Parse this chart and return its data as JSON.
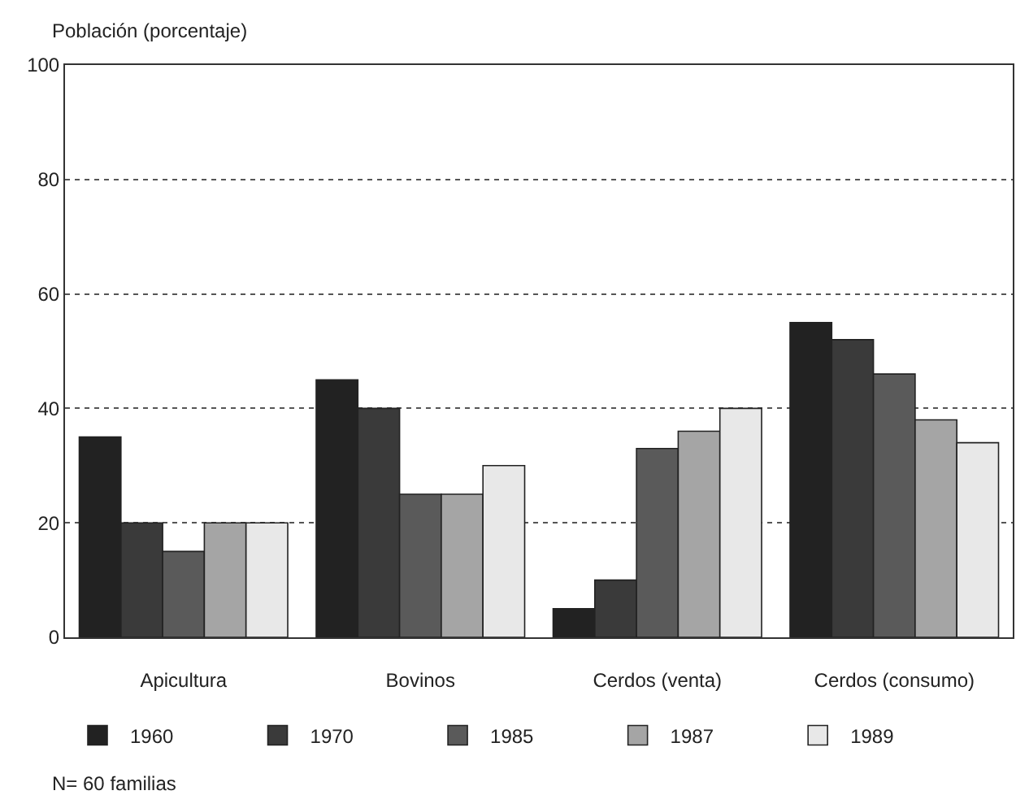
{
  "chart_data": {
    "type": "bar",
    "ylabel": "Población (porcentaje)",
    "categories": [
      "Apicultura",
      "Bovinos",
      "Cerdos (venta)",
      "Cerdos (consumo)"
    ],
    "series": [
      {
        "name": "1960",
        "color": "#222222",
        "values": [
          35,
          45,
          5,
          55
        ]
      },
      {
        "name": "1970",
        "color": "#3a3a3a",
        "values": [
          20,
          40,
          10,
          52
        ]
      },
      {
        "name": "1985",
        "color": "#5a5a5a",
        "values": [
          15,
          25,
          33,
          46
        ]
      },
      {
        "name": "1987",
        "color": "#a5a5a5",
        "values": [
          20,
          25,
          36,
          38
        ]
      },
      {
        "name": "1989",
        "color": "#e8e8e8",
        "values": [
          20,
          30,
          40,
          34
        ]
      }
    ],
    "ylim": [
      0,
      100
    ],
    "yticks": [
      0,
      20,
      40,
      60,
      80,
      100
    ],
    "grid": "y",
    "legend": "bottom",
    "annotations": [
      "N= 60 familias"
    ]
  }
}
